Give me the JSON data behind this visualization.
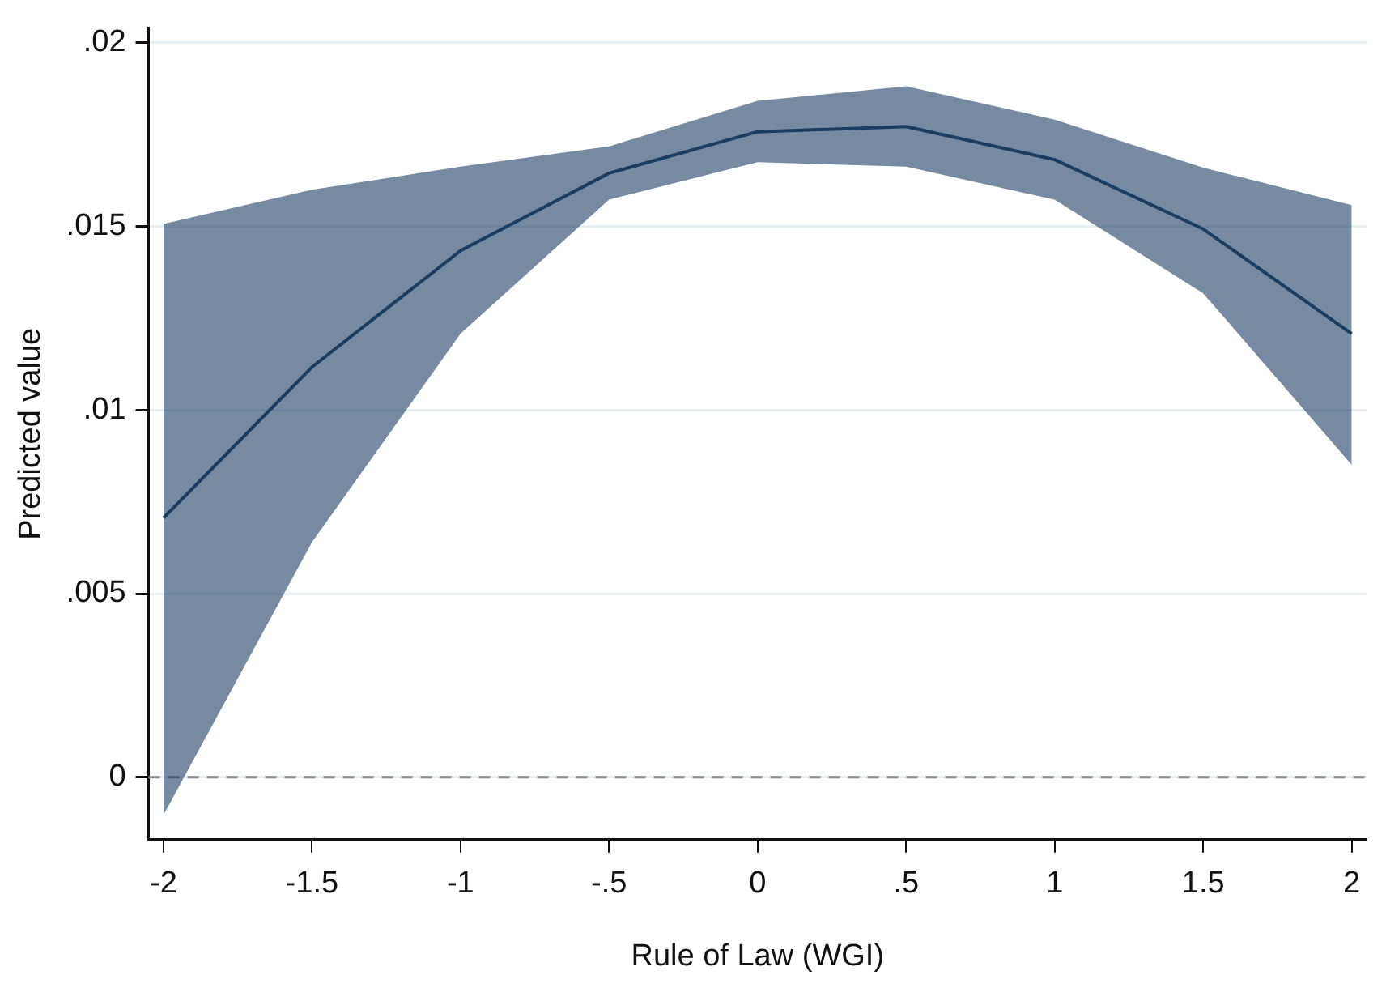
{
  "chart_data": {
    "type": "line",
    "xlabel": "Rule of Law (WGI)",
    "ylabel": "Predicted value",
    "x": [
      -2,
      -1.5,
      -1,
      -0.5,
      0,
      0.5,
      1,
      1.5,
      2
    ],
    "series": [
      {
        "color": "#1a3d63",
        "values": [
          0.00706,
          0.01117,
          0.01434,
          0.01645,
          0.01758,
          0.01772,
          0.01682,
          0.01493,
          0.01208
        ],
        "lower": [
          -0.00103,
          0.0064,
          0.01208,
          0.01573,
          0.01675,
          0.01663,
          0.01573,
          0.01318,
          0.00851
        ],
        "upper": [
          0.01507,
          0.016,
          0.01663,
          0.01718,
          0.01842,
          0.01882,
          0.01791,
          0.0166,
          0.01558
        ]
      }
    ],
    "xlim": [
      -2.05,
      2.05
    ],
    "ylim": [
      -0.0017,
      0.0204
    ],
    "xticks": [
      -2,
      {
        "value": -1.5,
        "label": "-1.5"
      },
      -1,
      {
        "value": -0.5,
        "label": "-.5"
      },
      0,
      {
        "value": 0.5,
        "label": ".5"
      },
      1,
      {
        "value": 1.5,
        "label": "1.5"
      },
      2
    ],
    "yticks": [
      0,
      {
        "value": 0.005,
        "label": ".005"
      },
      {
        "value": 0.01,
        "label": ".01"
      },
      {
        "value": 0.015,
        "label": ".015"
      },
      {
        "value": 0.02,
        "label": ".02"
      }
    ],
    "ref_lines": [
      {
        "axis": "y",
        "value": 0,
        "color": "#888888",
        "line_style": "dashed"
      }
    ],
    "grid": "y",
    "legend": false,
    "marker": "none",
    "line_style": "solid"
  }
}
